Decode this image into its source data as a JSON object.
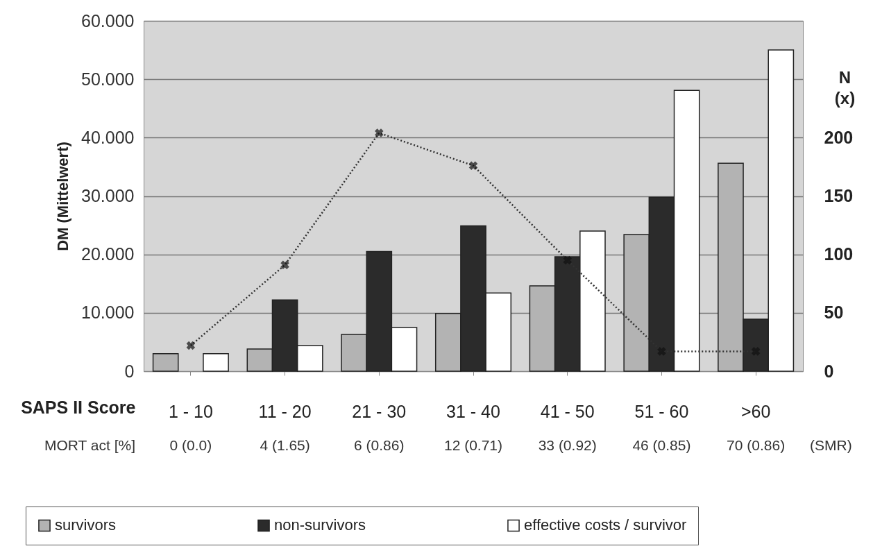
{
  "chart_data": {
    "type": "bar",
    "xlabel": "SAPS II Score",
    "ylabel": "DM (Mittelwert)",
    "y2label": "N (x)",
    "categories": [
      "1 - 10",
      "11 - 20",
      "21 - 30",
      "31 - 40",
      "41 - 50",
      "51 - 60",
      ">60"
    ],
    "series": [
      {
        "name": "survivors",
        "color": "#b3b3b3",
        "values": [
          3.0,
          3.8,
          6.3,
          9.9,
          14.6,
          23.4,
          35.6
        ]
      },
      {
        "name": "non-survivors",
        "color": "#2b2b2b",
        "values": [
          null,
          12.2,
          20.5,
          24.9,
          19.6,
          29.8,
          8.9
        ]
      },
      {
        "name": "effective costs / survivor",
        "color": "#ffffff",
        "values": [
          3.0,
          4.4,
          7.5,
          13.4,
          24.0,
          48.1,
          55.0
        ]
      },
      {
        "type": "line",
        "axis": "y2",
        "color": "#333333",
        "marker": "cross",
        "line_style": "dotted",
        "values": [
          22,
          91,
          204,
          176,
          95,
          17,
          17
        ]
      }
    ],
    "ylim": [
      0,
      60
    ],
    "yticks": [
      0,
      {
        "value": 10,
        "label": "10.000"
      },
      {
        "value": 20,
        "label": "20.000"
      },
      {
        "value": 30,
        "label": "30.000"
      },
      {
        "value": 40,
        "label": "40.000"
      },
      {
        "value": 50,
        "label": "50.000"
      },
      {
        "value": 60,
        "label": "60.000"
      }
    ],
    "y2lim": [
      0,
      300
    ],
    "y2ticks": [
      0,
      50,
      100,
      150,
      200
    ],
    "grid": "y",
    "legend": "bottom",
    "annotations": [
      "MORT act [%]",
      "0 (0.0)",
      "4 (1.65)",
      "6 (0.86)",
      "12 (0.71)",
      "33 (0.92)",
      "46 (0.85)",
      "70 (0.86)",
      "(SMR)"
    ]
  }
}
